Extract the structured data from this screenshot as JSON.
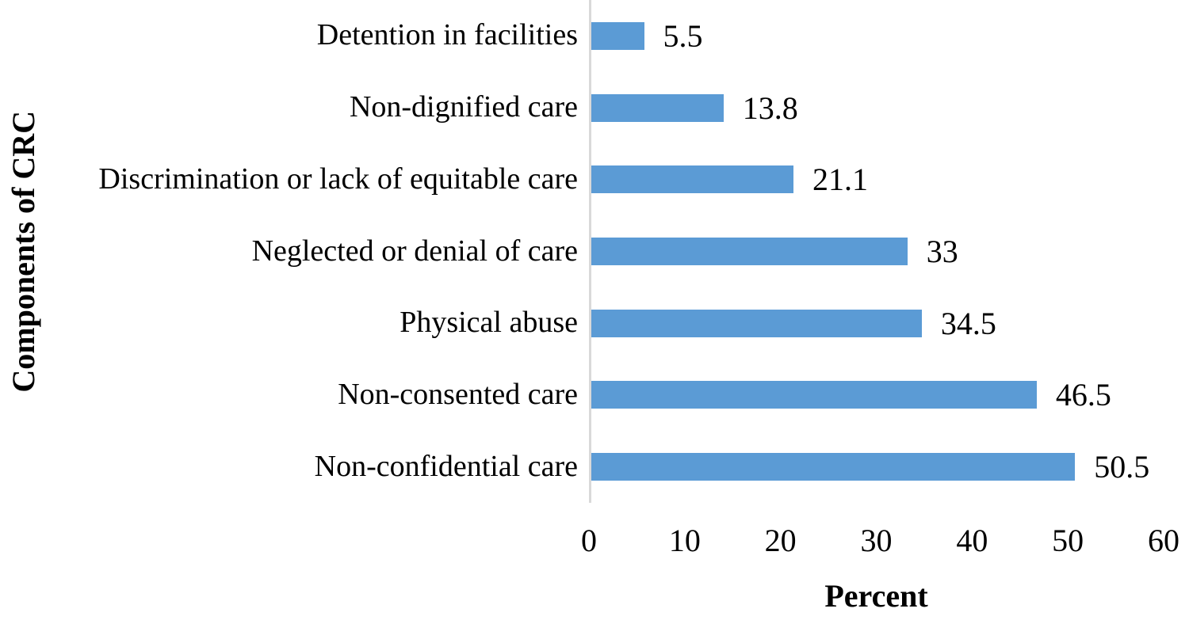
{
  "chart_data": {
    "type": "bar",
    "orientation": "horizontal",
    "title": "",
    "xlabel": "Percent",
    "ylabel": "Components of CRC",
    "categories": [
      "Detention in facilities",
      "Non-dignified care",
      "Discrimination or lack of equitable care",
      "Neglected or denial of care",
      "Physical abuse",
      "Non-consented care",
      "Non-confidential care"
    ],
    "values": [
      5.5,
      13.8,
      21.1,
      33,
      34.5,
      46.5,
      50.5
    ],
    "value_labels": [
      "5.5",
      "13.8",
      "21.1",
      "33",
      "34.5",
      "46.5",
      "50.5"
    ],
    "xlim": [
      0,
      60
    ],
    "xticks": [
      0,
      10,
      20,
      30,
      40,
      50,
      60
    ],
    "xtick_labels": [
      "0",
      "10",
      "20",
      "30",
      "40",
      "50",
      "60"
    ],
    "grid": false,
    "legend": "none",
    "bar_color": "#5B9BD5",
    "axis_line_color": "#D9D9D9",
    "text_color": "#000000",
    "background_color": "#FFFFFF"
  }
}
